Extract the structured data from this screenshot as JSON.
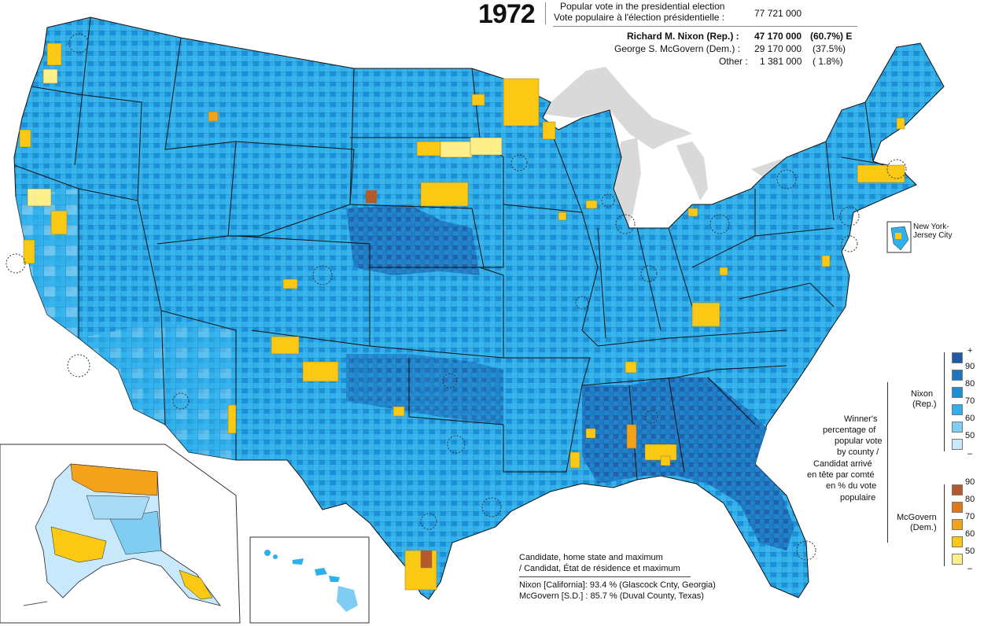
{
  "header": {
    "year": "1972",
    "popular_vote_en": "Popular vote in the presidential election",
    "popular_vote_fr": "Vote populaire à l'élection présidentielle :",
    "popular_vote_total": "77 721 000",
    "candidates": [
      {
        "label": "Richard M. Nixon (Rep.) :",
        "votes": "47 170 000",
        "pct": "(60.7%) E",
        "bold": true
      },
      {
        "label": "George S. McGovern (Dem.) :",
        "votes": "29 170 000",
        "pct": "(37.5%)",
        "bold": false
      },
      {
        "label": "Other :",
        "votes": "1 381 000",
        "pct": "( 1.8%)",
        "bold": false
      }
    ]
  },
  "inset_nyc": {
    "label_line1": "New York-",
    "label_line2": "Jersey City"
  },
  "legend": {
    "title": [
      "Winner's",
      "percentage of",
      "popular vote",
      "by county /",
      "Candidat arrivé",
      "en tête par comté",
      "en % du vote",
      "populaire"
    ],
    "nixon_label": [
      "Nixon",
      "(Rep.)"
    ],
    "mcgovern_label": [
      "McGovern",
      "(Dem.)"
    ],
    "nixon_ticks": [
      "+",
      "90",
      "80",
      "70",
      "60",
      "50",
      "–"
    ],
    "mcgovern_ticks": [
      "90",
      "80",
      "70",
      "60",
      "50",
      "–"
    ],
    "nixon_colors": [
      "#1f5aa6",
      "#1d74bf",
      "#1e8fd6",
      "#2fb0ea",
      "#7fcdf2",
      "#c7e9fb"
    ],
    "mcgovern_colors": [
      "#b45a2c",
      "#de7a1e",
      "#f5a21b",
      "#fbc913",
      "#fdf08a"
    ]
  },
  "maximum": {
    "title_en": "Candidate, home state and maximum",
    "title_fr": "/ Candidat, État de résidence et maximum",
    "rows": [
      "Nixon [California]:  93.4 % (Glascock Cnty, Georgia)",
      "McGovern [S.D.] :  85.7 % (Duval County, Texas)"
    ]
  },
  "colors": {
    "land_base": "#2fb0ea",
    "water": "#d9d9d9",
    "border": "#111111"
  }
}
